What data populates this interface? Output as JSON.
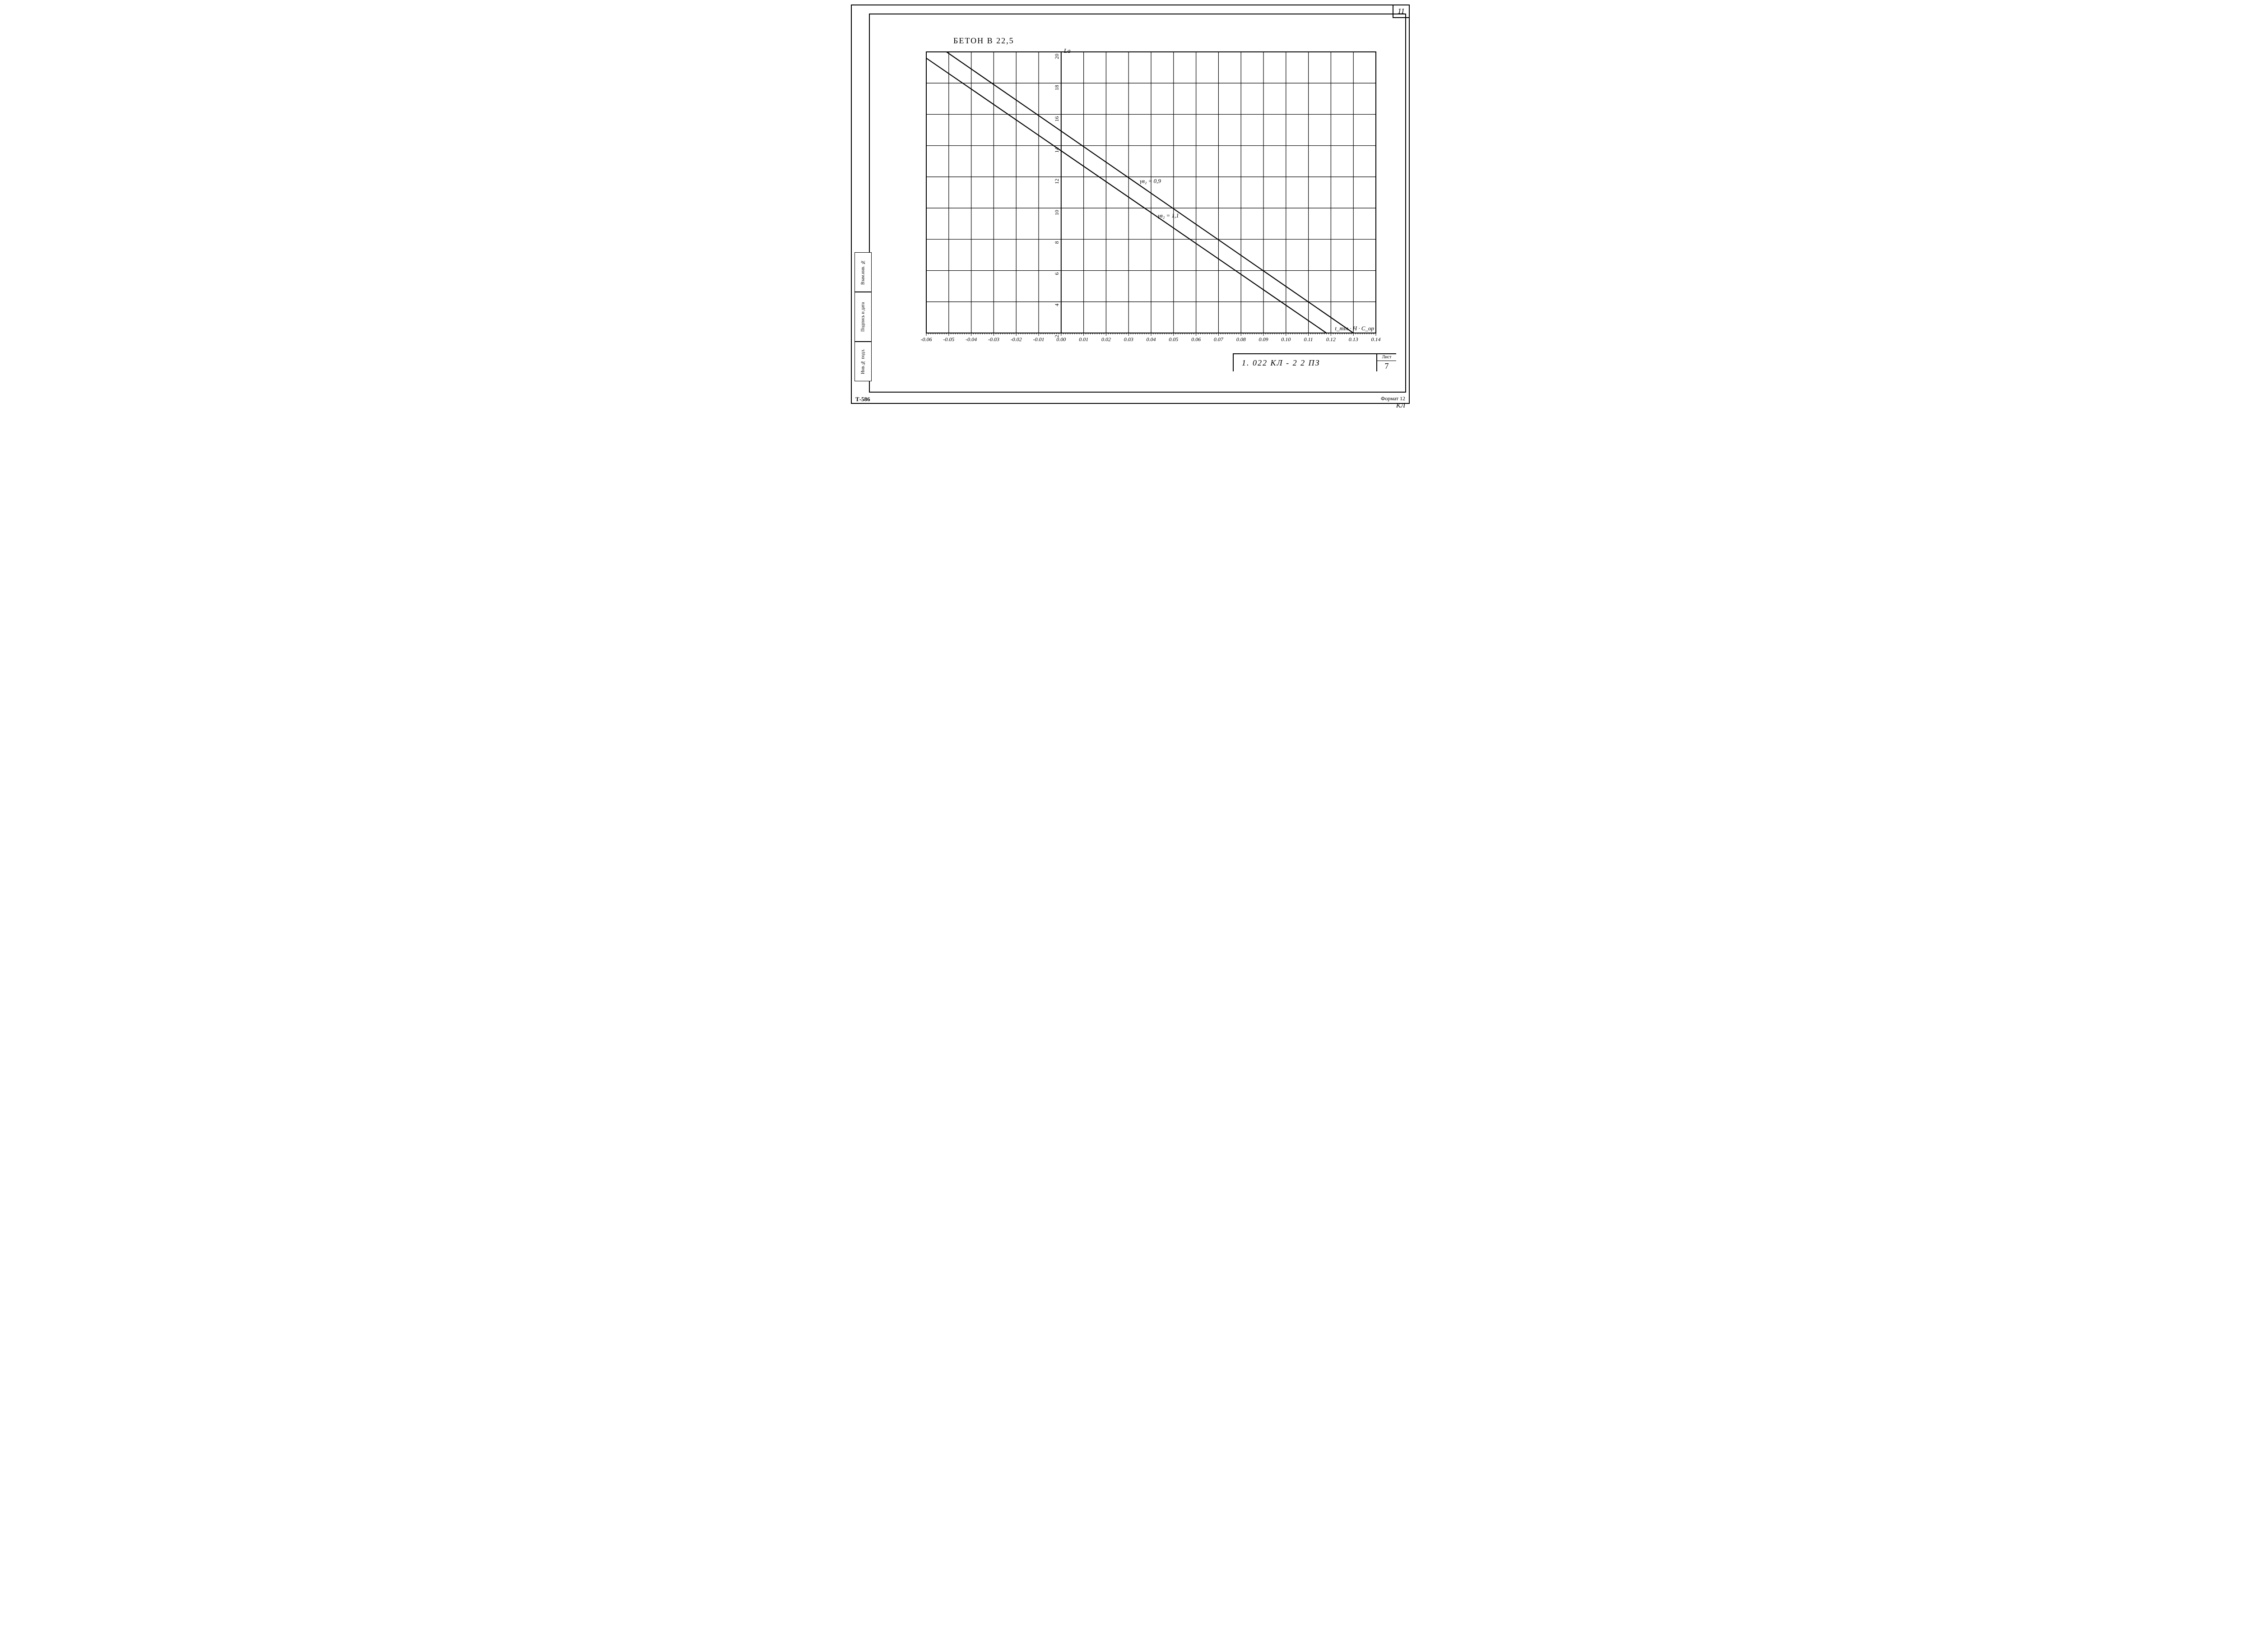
{
  "corner_number": "11",
  "chart": {
    "title": "БЕТОН  В 22,5",
    "y_axis_label": "La",
    "x_axis_label": "t_min · H · C_ор",
    "background_color": "#ffffff",
    "line_color": "#000000",
    "grid_line_width": 1.2,
    "frame_line_width": 2,
    "x": {
      "min": -0.06,
      "max": 0.14,
      "labels": [
        "-0.06",
        "-0.05",
        "-0.04",
        "-0.03",
        "-0.02",
        "-0.01",
        "0.00",
        "0.01",
        "0.02",
        "0.03",
        "0.04",
        "0.05",
        "0.06",
        "0.07",
        "0.08",
        "0.09",
        "0.10",
        "0.11",
        "0.12",
        "0.13",
        "0.14"
      ],
      "tick_step": 0.01,
      "minor_ticks_per_major": 10
    },
    "y": {
      "min": 2,
      "max": 20,
      "labels": [
        "2",
        "4",
        "6",
        "8",
        "10",
        "12",
        "14",
        "16",
        "18",
        "20"
      ],
      "tick_step": 2
    },
    "series": [
      {
        "name": "gamma_b2_0.9",
        "label": "γв₂ = 0,9",
        "label_pos": {
          "x": 0.035,
          "y": 11.6
        },
        "points": [
          {
            "x": -0.051,
            "y": 20
          },
          {
            "x": 0.13,
            "y": 2
          }
        ],
        "line_width": 2.2
      },
      {
        "name": "gamma_b2_1.1",
        "label": "γв₂ = 1,1",
        "label_pos": {
          "x": 0.043,
          "y": 9.4
        },
        "points": [
          {
            "x": -0.06,
            "y": 19.6
          },
          {
            "x": 0.118,
            "y": 2
          }
        ],
        "line_width": 2.2
      }
    ],
    "label_fontsize": 13
  },
  "side_labels": [
    "Инв.№ подл.",
    "Подпись и дата",
    "Взам.инв. №"
  ],
  "title_block": {
    "code": "1. 022  КЛ - 2    2        ПЗ",
    "sheet_word": "Лист",
    "sheet_num": "7"
  },
  "footer": {
    "left": "Т-586",
    "right_top": "Формат 12",
    "right_bottom": "КЛ"
  }
}
